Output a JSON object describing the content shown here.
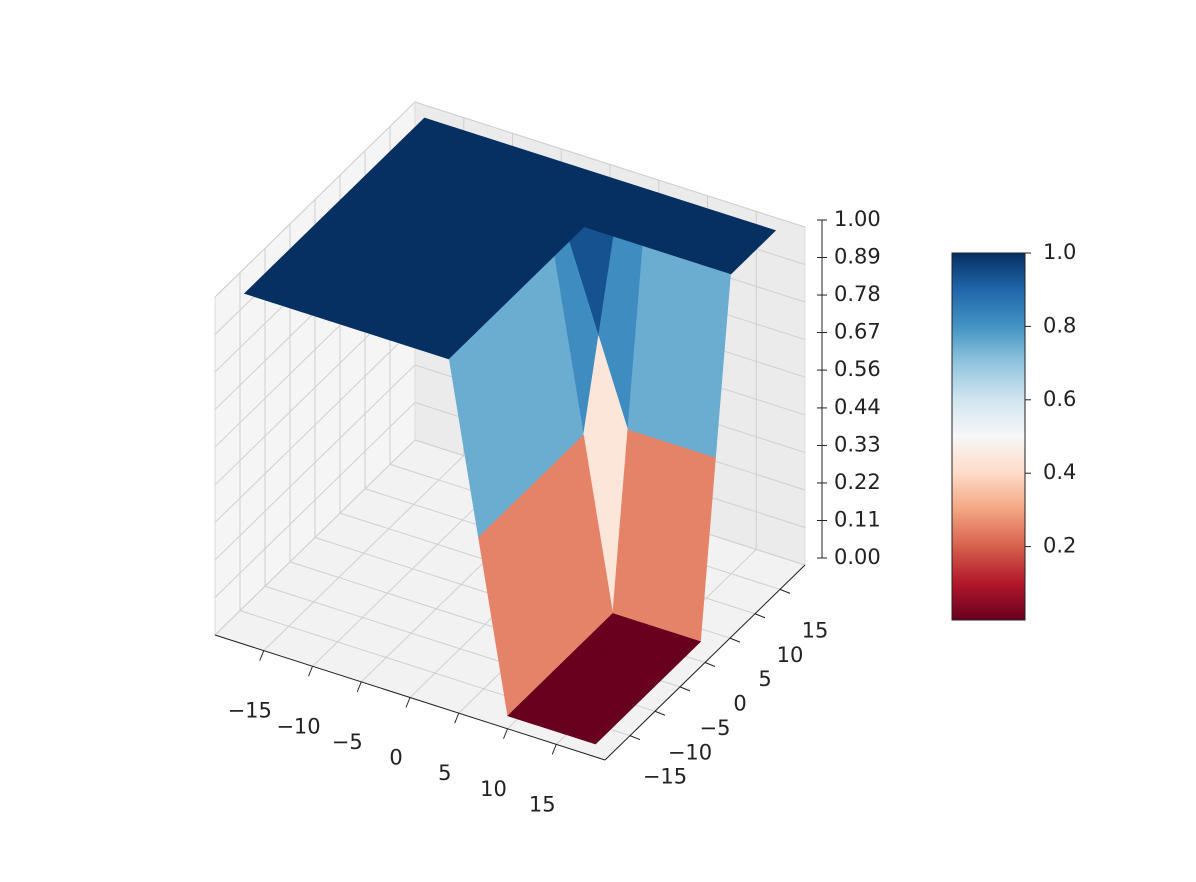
{
  "chart_data": {
    "type": "surface3d",
    "x": [
      -18,
      -15,
      -12,
      -9,
      -6,
      -3,
      0,
      3,
      6,
      9,
      12,
      15,
      18
    ],
    "y": [
      -18,
      -15,
      -12,
      -9,
      -6,
      -3,
      0,
      3,
      6,
      9,
      12,
      15,
      18
    ],
    "z": [
      [
        1,
        1,
        1,
        1,
        1,
        1,
        1,
        1,
        0.5,
        0,
        0,
        0,
        0
      ],
      [
        1,
        1,
        1,
        1,
        1,
        1,
        1,
        1,
        0.5,
        0,
        0,
        0,
        0
      ],
      [
        1,
        1,
        1,
        1,
        1,
        1,
        1,
        1,
        0.5,
        0,
        0,
        0,
        0
      ],
      [
        1,
        1,
        1,
        1,
        1,
        1,
        1,
        1,
        0.5,
        0,
        0,
        0,
        0
      ],
      [
        1,
        1,
        1,
        1,
        1,
        1,
        1,
        1,
        0.5,
        0,
        0,
        0,
        0
      ],
      [
        1,
        1,
        1,
        1,
        1,
        1,
        1,
        1,
        0.5,
        0,
        0,
        0,
        0
      ],
      [
        1,
        1,
        1,
        1,
        1,
        1,
        1,
        1,
        0.5,
        0,
        0,
        0,
        0
      ],
      [
        1,
        1,
        1,
        1,
        1,
        1,
        1,
        1,
        0.5,
        0,
        0,
        0,
        0
      ],
      [
        1,
        1,
        1,
        1,
        1,
        1,
        1,
        1,
        0.75,
        0.5,
        0.5,
        0.5,
        0.5
      ],
      [
        1,
        1,
        1,
        1,
        1,
        1,
        1,
        1,
        1,
        1,
        1,
        1,
        1
      ],
      [
        1,
        1,
        1,
        1,
        1,
        1,
        1,
        1,
        1,
        1,
        1,
        1,
        1
      ],
      [
        1,
        1,
        1,
        1,
        1,
        1,
        1,
        1,
        1,
        1,
        1,
        1,
        1
      ],
      [
        1,
        1,
        1,
        1,
        1,
        1,
        1,
        1,
        1,
        1,
        1,
        1,
        1
      ]
    ],
    "xlim": [
      -20,
      20
    ],
    "ylim": [
      -20,
      20
    ],
    "zlim": [
      0,
      1
    ],
    "xticks": [
      {
        "value": -15,
        "label": "−15"
      },
      {
        "value": -10,
        "label": "−10"
      },
      {
        "value": -5,
        "label": "−5"
      },
      0,
      5,
      10,
      15
    ],
    "yticks": [
      {
        "value": -15,
        "label": "−15"
      },
      {
        "value": -10,
        "label": "−10"
      },
      {
        "value": -5,
        "label": "−5"
      },
      0,
      5,
      10,
      15
    ],
    "zticks": [
      {
        "value": 0,
        "label": "0.00"
      },
      {
        "value": 0.111,
        "label": "0.11"
      },
      {
        "value": 0.222,
        "label": "0.22"
      },
      {
        "value": 0.333,
        "label": "0.33"
      },
      {
        "value": 0.444,
        "label": "0.44"
      },
      {
        "value": 0.556,
        "label": "0.56"
      },
      {
        "value": 0.667,
        "label": "0.67"
      },
      {
        "value": 0.778,
        "label": "0.78"
      },
      {
        "value": 0.889,
        "label": "0.89"
      },
      {
        "value": 1,
        "label": "1.00"
      }
    ],
    "colormap": "RdBu",
    "colormap_colors": [
      "#67001f",
      "#b2182b",
      "#d6604d",
      "#f4a582",
      "#fddbc7",
      "#f7f7f7",
      "#d1e5f0",
      "#92c5de",
      "#4393c3",
      "#2166ac",
      "#053061"
    ],
    "clim": [
      0,
      1
    ],
    "cticks": [
      {
        "value": 0.2,
        "label": "0.2"
      },
      {
        "value": 0.4,
        "label": "0.4"
      },
      {
        "value": 0.6,
        "label": "0.6"
      },
      {
        "value": 0.8,
        "label": "0.8"
      },
      {
        "value": 1,
        "label": "1.0"
      }
    ],
    "grid": true
  }
}
